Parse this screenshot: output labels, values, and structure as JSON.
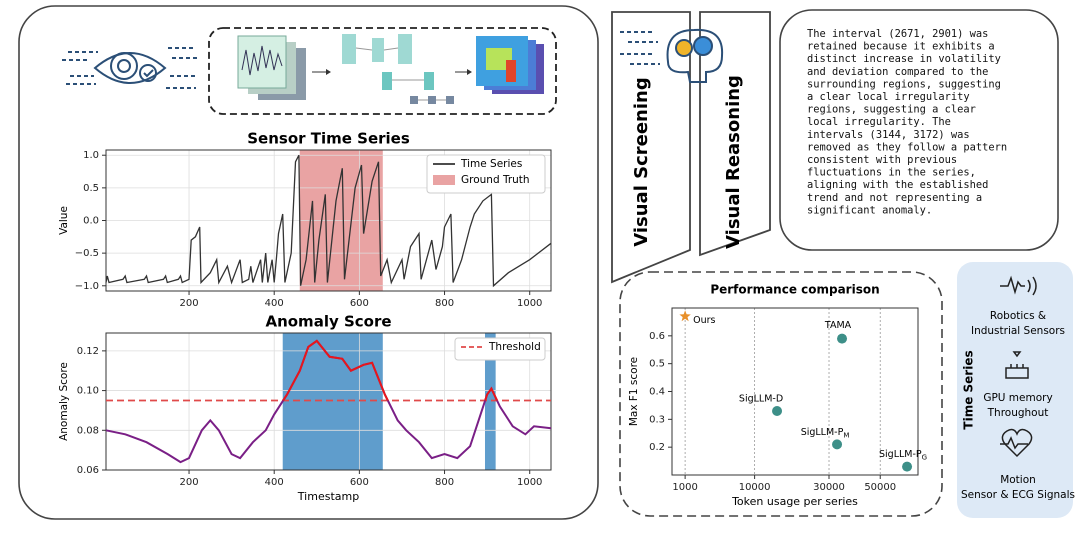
{
  "chart_data": [
    {
      "type": "line",
      "title": "Sensor Time Series",
      "ylabel": "Value",
      "xlim": [
        5,
        1050
      ],
      "ylim": [
        -1.08,
        1.08
      ],
      "xticks": [
        200,
        400,
        600,
        800,
        1000
      ],
      "yticks": [
        {
          "value": -1,
          "label": "−1.0"
        },
        {
          "value": -0.5,
          "label": "−0.5"
        },
        {
          "value": 0,
          "label": "0.0"
        },
        {
          "value": 0.5,
          "label": "0.5"
        },
        {
          "value": 1,
          "label": "1.0"
        }
      ],
      "grid": true,
      "legend": "upper right",
      "spans": [
        {
          "name": "Ground Truth",
          "color": "#e9a3a3",
          "range": [
            460,
            655
          ]
        }
      ],
      "series": [
        {
          "name": "Time Series",
          "color": "#333333",
          "x": [
            5,
            8,
            12,
            45,
            50,
            54,
            95,
            100,
            104,
            140,
            145,
            149,
            175,
            180,
            184,
            200,
            205,
            215,
            225,
            228,
            250,
            265,
            270,
            290,
            300,
            320,
            325,
            340,
            345,
            350,
            368,
            372,
            380,
            385,
            395,
            400,
            405,
            410,
            420,
            425,
            440,
            450,
            458,
            462,
            475,
            490,
            495,
            505,
            520,
            525,
            545,
            560,
            565,
            590,
            605,
            610,
            630,
            645,
            650,
            665,
            675,
            700,
            705,
            720,
            740,
            745,
            770,
            780,
            795,
            800,
            815,
            820,
            840,
            860,
            870,
            890,
            910,
            915,
            950,
            1000,
            1050
          ],
          "values": [
            -0.95,
            -0.85,
            -0.95,
            -0.9,
            -0.85,
            -0.95,
            -0.9,
            -0.85,
            -0.95,
            -0.9,
            -0.85,
            -0.95,
            -0.9,
            -0.85,
            -0.95,
            -0.9,
            -0.3,
            -0.25,
            -0.1,
            -0.95,
            -0.8,
            -0.6,
            -0.95,
            -0.7,
            -0.95,
            -0.6,
            -0.95,
            -0.9,
            -0.7,
            -0.95,
            -0.6,
            -0.95,
            -0.5,
            -0.95,
            -0.6,
            -0.95,
            -0.6,
            -0.2,
            0.1,
            -0.95,
            -0.5,
            0.9,
            1.0,
            -1.0,
            -0.6,
            0.3,
            -0.95,
            -0.3,
            0.4,
            -0.95,
            0.3,
            0.8,
            -0.9,
            0.5,
            0.85,
            -0.2,
            0.6,
            0.9,
            -0.85,
            -0.6,
            -0.95,
            -0.6,
            -0.9,
            -0.4,
            -0.2,
            -0.9,
            -0.3,
            -0.75,
            -0.4,
            -0.1,
            0.1,
            -0.95,
            -0.6,
            -0.1,
            0.1,
            0.3,
            0.4,
            -1.0,
            -0.8,
            -0.6,
            -0.35
          ]
        }
      ]
    },
    {
      "type": "line",
      "title": "Anomaly Score",
      "xlabel": "Timestamp",
      "ylabel": "Anomaly Score",
      "xlim": [
        5,
        1050
      ],
      "ylim": [
        0.06,
        0.129
      ],
      "xticks": [
        200,
        400,
        600,
        800,
        1000
      ],
      "yticks": [
        0.06,
        0.08,
        {
          "value": 0.1,
          "label": "0.10"
        },
        0.12
      ],
      "grid": true,
      "legend": "upper right",
      "threshold": {
        "name": "Threshold",
        "value": 0.095,
        "color": "#e04a4a"
      },
      "spans": [
        {
          "color": "#5f9dcc",
          "range": [
            420,
            655
          ]
        },
        {
          "color": "#5f9dcc",
          "range": [
            895,
            920
          ]
        }
      ],
      "series": [
        {
          "color": "#7a1f86",
          "above_color": "#e8161b",
          "x": [
            5,
            50,
            100,
            150,
            180,
            200,
            230,
            250,
            270,
            300,
            320,
            350,
            380,
            400,
            430,
            460,
            480,
            500,
            530,
            560,
            580,
            610,
            630,
            660,
            690,
            710,
            740,
            770,
            800,
            830,
            860,
            880,
            900,
            910,
            930,
            960,
            990,
            1010,
            1050
          ],
          "values": [
            0.08,
            0.078,
            0.074,
            0.068,
            0.064,
            0.066,
            0.08,
            0.085,
            0.08,
            0.068,
            0.066,
            0.074,
            0.08,
            0.088,
            0.098,
            0.11,
            0.122,
            0.125,
            0.117,
            0.116,
            0.11,
            0.113,
            0.114,
            0.098,
            0.085,
            0.08,
            0.074,
            0.066,
            0.068,
            0.066,
            0.072,
            0.085,
            0.098,
            0.101,
            0.092,
            0.082,
            0.078,
            0.082,
            0.081
          ]
        }
      ]
    },
    {
      "type": "scatter",
      "title": "Performance comparison",
      "xlabel": "Token usage per series",
      "ylabel": "Max F1 score",
      "xscale": "sqrt",
      "xlim": [
        350,
        68000
      ],
      "ylim": [
        0.1,
        0.7
      ],
      "xticks": [
        1000,
        10000,
        30000,
        50000
      ],
      "yticks": [
        0.2,
        0.3,
        0.4,
        0.5,
        0.6
      ],
      "grid": "x",
      "points": [
        {
          "name": "Ours",
          "x": 1000,
          "y": 0.67,
          "color": "#e8902a",
          "marker": "star"
        },
        {
          "name": "TAMA",
          "x": 34600,
          "y": 0.59,
          "color": "#3d8f88"
        },
        {
          "name": "SigLLM-D",
          "x": 14900,
          "y": 0.33,
          "color": "#3d8f88"
        },
        {
          "name": "SigLLM-P",
          "sub": "M",
          "x": 32800,
          "y": 0.21,
          "color": "#3d8f88"
        },
        {
          "name": "SigLLM-P",
          "sub": "G",
          "x": 62500,
          "y": 0.13,
          "color": "#3d8f88"
        }
      ]
    }
  ],
  "stages": [
    "Visual Screening",
    "Visual Reasoning"
  ],
  "reasoning": [
    "The interval (2671, 2901) was",
    "retained because it exhibits a",
    "distinct increase in volatility",
    "and deviation compared to the",
    "surrounding regions, suggesting",
    "a clear local irregularity",
    "regions, suggesting a clear",
    "local irregularity. The",
    "intervals (3144, 3172) was",
    "removed as they follow a pattern",
    "consistent with previous",
    "fluctuations in the series,",
    "aligning with the established",
    "trend and not representing a",
    "significant anomaly."
  ],
  "time_series": {
    "title": "Time Series",
    "items": [
      "Robotics & Industrial Sensors",
      "GPU memory Throughout",
      "Motion Sensor & ECG Signals"
    ]
  }
}
